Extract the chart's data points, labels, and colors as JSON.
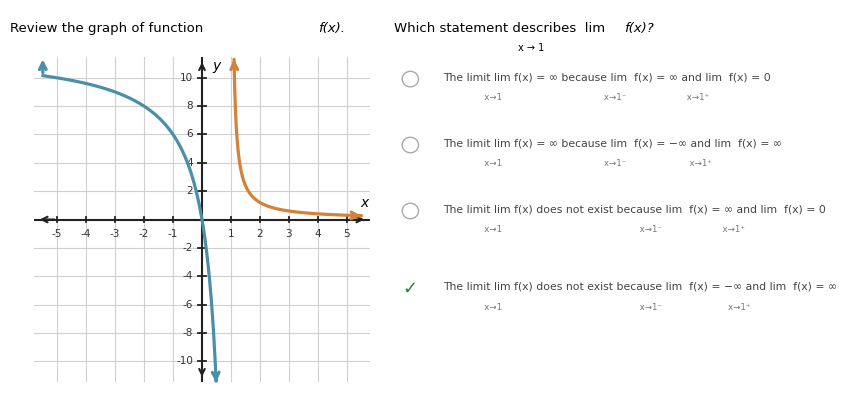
{
  "graph_xlim": [
    -5.8,
    5.8
  ],
  "graph_ylim": [
    -11.5,
    11.5
  ],
  "xticks": [
    -5,
    -4,
    -3,
    -2,
    -1,
    1,
    2,
    3,
    4,
    5
  ],
  "yticks": [
    -10,
    -8,
    -6,
    -4,
    -2,
    2,
    4,
    6,
    8,
    10
  ],
  "teal_color": "#4a8fa8",
  "orange_color": "#d4813a",
  "grid_color": "#d0d0d0",
  "axis_color": "#222222",
  "bg_color": "#f0f0f0",
  "teal_A": 12.0,
  "teal_B": 12.0,
  "orange_A": 1.2,
  "option1_line1": "The limit lim f(x) = ∞ because lim  f(x) = ∞ and lim  f(x) = 0",
  "option1_sub": "                x→1                                        x→1⁻                       x→1⁺",
  "option2_line1": "The limit lim f(x) = ∞ because lim  f(x) = −∞ and lim  f(x) = ∞",
  "option2_sub": "                x→1                                        x→1⁻                        x→1⁺",
  "option3_line1": "The limit lim f(x) does not exist because lim  f(x) = ∞ and lim  f(x) = 0",
  "option3_sub": "                x→1                                                     x→1⁻                       x→1⁺",
  "option4_line1": "The limit lim f(x) does not exist because lim  f(x) = −∞ and lim  f(x) = ∞",
  "option4_sub": "                x→1                                                     x→1⁻                         x→1⁺",
  "left_label1": "Review the graph of function ",
  "left_label2": "f(x).",
  "right_header1": "Which statement describes  lim  ",
  "right_header2": "f(x)?",
  "right_header_sub": "x → 1"
}
